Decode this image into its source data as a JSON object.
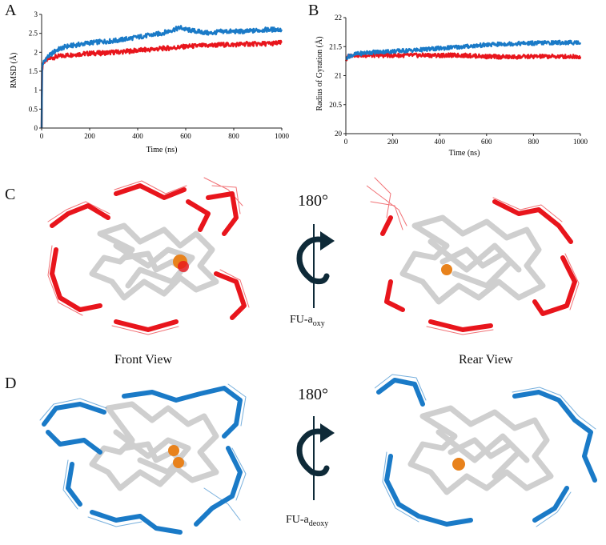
{
  "panels": {
    "a": "A",
    "b": "B",
    "c": "C",
    "d": "D"
  },
  "colors": {
    "oxy": "#e8151c",
    "deoxy": "#1a7ac7",
    "core": "#cfcfcf",
    "ligand": "#e8821c",
    "arrow": "#0e2a38"
  },
  "views": {
    "front": "Front View",
    "rear": "Rear View"
  },
  "rotation": {
    "c": "180°",
    "d": "180°"
  },
  "fu_oxy": {
    "base": "FU-a",
    "sub": "oxy"
  },
  "fu_deoxy": {
    "base": "FU-a",
    "sub": "deoxy"
  },
  "chart_data": [
    {
      "type": "line",
      "title": "",
      "xlabel": "Time (ns)",
      "ylabel": "RMSD (Å)",
      "xlim": [
        0,
        1000
      ],
      "ylim": [
        0,
        3
      ],
      "xticks": [
        0,
        200,
        400,
        600,
        800,
        1000
      ],
      "yticks": [
        0,
        0.5,
        1,
        1.5,
        2,
        2.5,
        3
      ],
      "yticklabels": [
        "0",
        "0.5",
        "1",
        "1.5",
        "2",
        "2.5",
        "3"
      ],
      "series": [
        {
          "name": "FU-a oxy",
          "color": "#e8151c",
          "x": [
            0,
            2,
            5,
            10,
            20,
            40,
            60,
            80,
            100,
            150,
            200,
            250,
            300,
            350,
            400,
            450,
            500,
            550,
            600,
            650,
            700,
            750,
            800,
            850,
            900,
            950,
            1000
          ],
          "y": [
            0,
            1.5,
            1.7,
            1.75,
            1.8,
            1.85,
            1.88,
            1.9,
            1.92,
            1.95,
            1.97,
            1.98,
            2.0,
            2.02,
            2.05,
            2.07,
            2.1,
            2.12,
            2.15,
            2.17,
            2.18,
            2.2,
            2.2,
            2.22,
            2.22,
            2.23,
            2.25
          ]
        },
        {
          "name": "FU-a deoxy",
          "color": "#1a7ac7",
          "x": [
            0,
            2,
            5,
            10,
            20,
            40,
            60,
            80,
            100,
            150,
            200,
            250,
            300,
            350,
            400,
            450,
            500,
            550,
            580,
            600,
            650,
            700,
            750,
            800,
            850,
            900,
            950,
            1000
          ],
          "y": [
            0,
            1.6,
            1.7,
            1.75,
            1.85,
            1.95,
            2.05,
            2.1,
            2.15,
            2.2,
            2.25,
            2.28,
            2.3,
            2.35,
            2.4,
            2.45,
            2.5,
            2.6,
            2.65,
            2.6,
            2.55,
            2.5,
            2.55,
            2.55,
            2.55,
            2.58,
            2.6,
            2.6
          ]
        }
      ]
    },
    {
      "type": "line",
      "title": "",
      "xlabel": "Time (ns)",
      "ylabel": "Radius of Gyration (Å)",
      "xlim": [
        0,
        1000
      ],
      "ylim": [
        20,
        22
      ],
      "xticks": [
        0,
        200,
        400,
        600,
        800,
        1000
      ],
      "yticks": [
        20,
        20.5,
        21,
        21.5,
        22
      ],
      "yticklabels": [
        "20",
        "20.5",
        "21",
        "21.5",
        "22"
      ],
      "series": [
        {
          "name": "FU-a oxy",
          "color": "#e8151c",
          "x": [
            0,
            10,
            30,
            60,
            100,
            200,
            300,
            400,
            500,
            600,
            700,
            800,
            900,
            1000
          ],
          "y": [
            21.25,
            21.33,
            21.36,
            21.35,
            21.35,
            21.35,
            21.35,
            21.35,
            21.35,
            21.33,
            21.32,
            21.33,
            21.33,
            21.33
          ]
        },
        {
          "name": "FU-a deoxy",
          "color": "#1a7ac7",
          "x": [
            0,
            10,
            30,
            60,
            100,
            200,
            300,
            400,
            500,
            600,
            700,
            800,
            900,
            1000
          ],
          "y": [
            21.3,
            21.33,
            21.36,
            21.38,
            21.4,
            21.42,
            21.44,
            21.47,
            21.5,
            21.53,
            21.55,
            21.56,
            21.57,
            21.57
          ]
        }
      ]
    }
  ]
}
